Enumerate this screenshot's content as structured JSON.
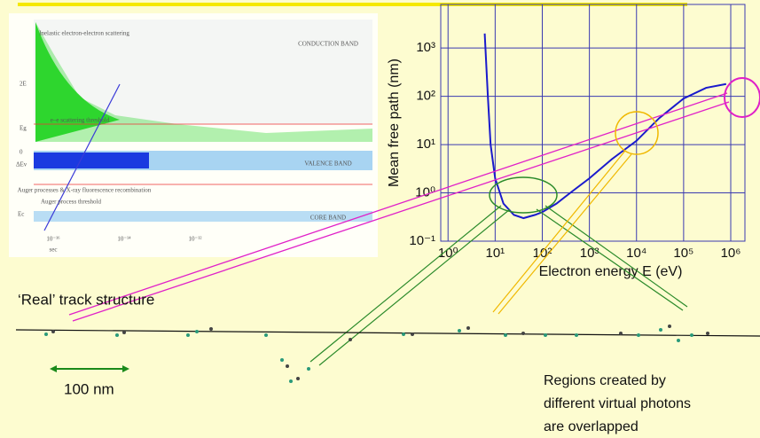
{
  "chart_data": {
    "type": "line",
    "x_label": "Electron energy E (eV)",
    "y_label": "Mean free path (nm)",
    "log_x": true,
    "log_y": true,
    "grid": true,
    "grid_color": "#3a3ab0",
    "xlim": [
      0.7,
      2000000
    ],
    "ylim": [
      0.1,
      8000
    ],
    "xticks": [
      {
        "value": 1,
        "label": "10⁰"
      },
      {
        "value": 10,
        "label": "10¹"
      },
      {
        "value": 100,
        "label": "10²"
      },
      {
        "value": 1000,
        "label": "10³"
      },
      {
        "value": 10000,
        "label": "10⁴"
      },
      {
        "value": 100000,
        "label": "10⁵"
      },
      {
        "value": 1000000,
        "label": "10⁶"
      }
    ],
    "yticks": [
      {
        "value": 0.1,
        "label": "10⁻¹"
      },
      {
        "value": 1,
        "label": "10⁰"
      },
      {
        "value": 10,
        "label": "10¹"
      },
      {
        "value": 100,
        "label": "10²"
      },
      {
        "value": 1000,
        "label": "10³"
      }
    ],
    "x": [
      6,
      7,
      8,
      10,
      15,
      25,
      40,
      70,
      100,
      200,
      500,
      1000,
      3000,
      10000,
      30000,
      100000,
      300000,
      800000
    ],
    "series": [
      {
        "color": "#1a1acc",
        "values": [
          2000,
          100,
          10,
          2,
          0.6,
          0.35,
          0.3,
          0.35,
          0.4,
          0.6,
          1.2,
          2,
          5,
          12,
          35,
          90,
          150,
          180
        ]
      }
    ]
  },
  "slide": {
    "track_label": "‘Real’ track structure",
    "scale_label": "100 nm",
    "note": [
      "Regions created by",
      "different virtual photons",
      "are overlapped"
    ],
    "inset": {
      "conduction": "CONDUCTION BAND",
      "valence": "VALENCE BAND",
      "core": "CORE BAND",
      "inelastic": "Inelastic electron-electron scattering",
      "ee_threshold": "e–e scattering threshold",
      "auger": "Auger processes & X-ray fluorescence recombination",
      "auger_threshold": "Auger process threshold",
      "level_2e": "2E",
      "level_eg": "Eg",
      "level_0": "0",
      "level_dev": "ΔEv",
      "level_ec": "Ec",
      "t1": "10⁻¹⁶",
      "t2": "10⁻¹⁴",
      "t3": "10⁻¹²",
      "sec": "sec"
    }
  }
}
